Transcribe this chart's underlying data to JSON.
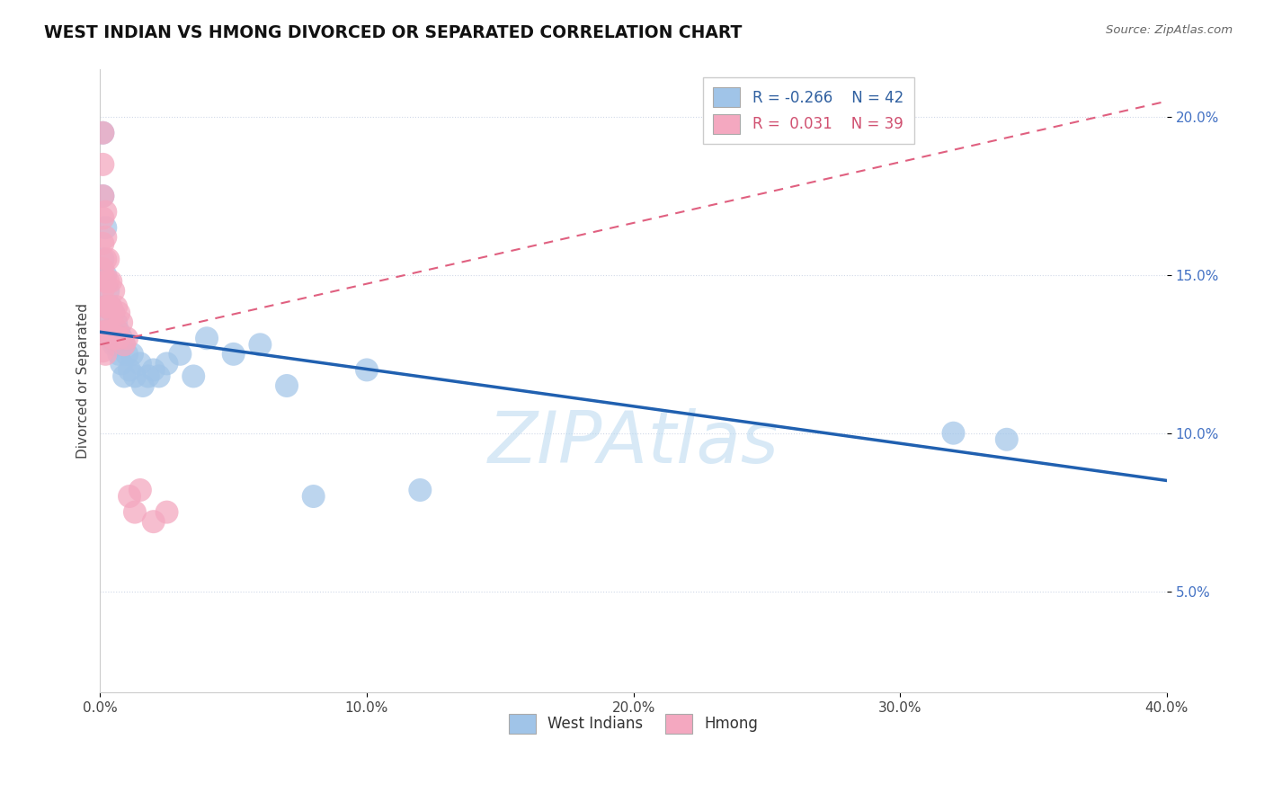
{
  "title": "WEST INDIAN VS HMONG DIVORCED OR SEPARATED CORRELATION CHART",
  "source": "Source: ZipAtlas.com",
  "ylabel": "Divorced or Separated",
  "xlim": [
    0.0,
    0.4
  ],
  "ylim": [
    0.018,
    0.215
  ],
  "xticks": [
    0.0,
    0.1,
    0.2,
    0.3,
    0.4
  ],
  "xtick_labels": [
    "0.0%",
    "10.0%",
    "20.0%",
    "30.0%",
    "40.0%"
  ],
  "yticks": [
    0.05,
    0.1,
    0.15,
    0.2
  ],
  "ytick_labels": [
    "5.0%",
    "10.0%",
    "15.0%",
    "20.0%"
  ],
  "legend_r_blue": "-0.266",
  "legend_n_blue": "42",
  "legend_r_pink": "0.031",
  "legend_n_pink": "39",
  "blue_color": "#a0c4e8",
  "pink_color": "#f4a8c0",
  "trend_blue_color": "#2060b0",
  "trend_pink_color": "#e06080",
  "watermark": "ZIPAtlas",
  "background_color": "#ffffff",
  "grid_color": "#d0d8e8",
  "blue_trend_x0": 0.0,
  "blue_trend_y0": 0.132,
  "blue_trend_x1": 0.4,
  "blue_trend_y1": 0.085,
  "pink_trend_x0": 0.0,
  "pink_trend_y0": 0.128,
  "pink_trend_x1": 0.4,
  "pink_trend_y1": 0.205,
  "west_indians_x": [
    0.001,
    0.001,
    0.001,
    0.002,
    0.002,
    0.002,
    0.003,
    0.003,
    0.004,
    0.004,
    0.005,
    0.005,
    0.005,
    0.006,
    0.006,
    0.007,
    0.007,
    0.008,
    0.008,
    0.009,
    0.009,
    0.01,
    0.011,
    0.012,
    0.013,
    0.015,
    0.016,
    0.018,
    0.02,
    0.022,
    0.025,
    0.03,
    0.035,
    0.04,
    0.05,
    0.06,
    0.07,
    0.08,
    0.1,
    0.12,
    0.32,
    0.34
  ],
  "west_indians_y": [
    0.195,
    0.175,
    0.155,
    0.165,
    0.15,
    0.14,
    0.145,
    0.135,
    0.14,
    0.13,
    0.138,
    0.132,
    0.128,
    0.135,
    0.128,
    0.132,
    0.125,
    0.13,
    0.122,
    0.128,
    0.118,
    0.125,
    0.12,
    0.125,
    0.118,
    0.122,
    0.115,
    0.118,
    0.12,
    0.118,
    0.122,
    0.125,
    0.118,
    0.13,
    0.125,
    0.128,
    0.115,
    0.08,
    0.12,
    0.082,
    0.1,
    0.098
  ],
  "hmong_x": [
    0.001,
    0.001,
    0.001,
    0.001,
    0.001,
    0.001,
    0.001,
    0.001,
    0.001,
    0.001,
    0.002,
    0.002,
    0.002,
    0.002,
    0.002,
    0.002,
    0.002,
    0.003,
    0.003,
    0.003,
    0.003,
    0.004,
    0.004,
    0.004,
    0.005,
    0.005,
    0.005,
    0.006,
    0.006,
    0.007,
    0.007,
    0.008,
    0.009,
    0.01,
    0.011,
    0.013,
    0.015,
    0.02,
    0.025
  ],
  "hmong_y": [
    0.195,
    0.185,
    0.175,
    0.168,
    0.16,
    0.152,
    0.145,
    0.138,
    0.132,
    0.126,
    0.17,
    0.162,
    0.155,
    0.148,
    0.14,
    0.132,
    0.125,
    0.155,
    0.148,
    0.14,
    0.132,
    0.148,
    0.14,
    0.132,
    0.145,
    0.138,
    0.13,
    0.14,
    0.133,
    0.138,
    0.13,
    0.135,
    0.128,
    0.13,
    0.08,
    0.075,
    0.082,
    0.072,
    0.075
  ]
}
